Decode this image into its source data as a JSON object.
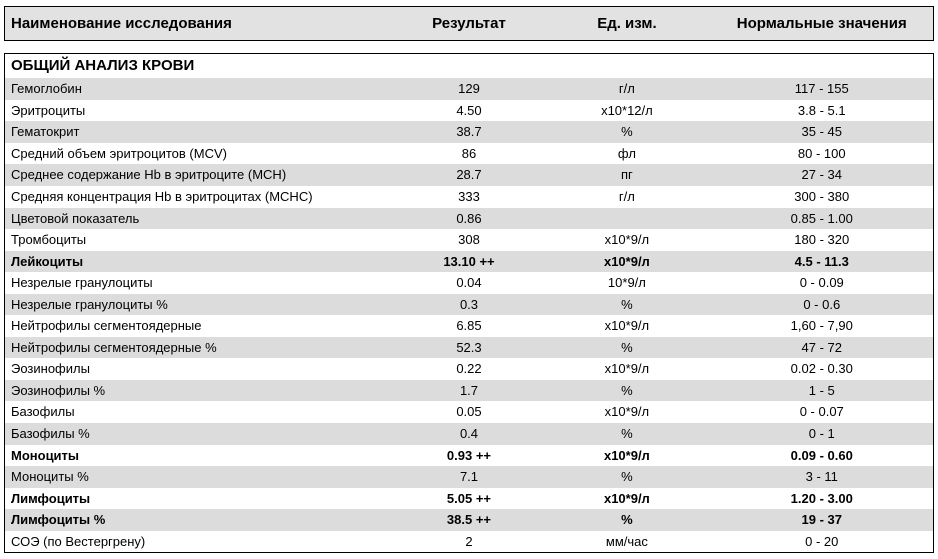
{
  "header": {
    "name": "Наименование исследования",
    "result": "Результат",
    "unit": "Ед. изм.",
    "norm": "Нормальные значения"
  },
  "section_title": "ОБЩИЙ АНАЛИЗ КРОВИ",
  "colors": {
    "stripe_light": "#ffffff",
    "stripe_dark": "#dcdcdc",
    "header_bg": "#e2e2e2",
    "border": "#000000",
    "text": "#000000"
  },
  "font": {
    "family": "Arial",
    "size_header_pt": 11,
    "size_body_pt": 10
  },
  "rows": [
    {
      "name": "Гемоглобин",
      "result": "129",
      "unit": "г/л",
      "norm": "117 - 155",
      "bold": false,
      "indent": false
    },
    {
      "name": "Эритроциты",
      "result": "4.50",
      "unit": "x10*12/л",
      "norm": "3.8 - 5.1",
      "bold": false,
      "indent": false
    },
    {
      "name": "Гематокрит",
      "result": "38.7",
      "unit": "%",
      "norm": "35 - 45",
      "bold": false,
      "indent": false
    },
    {
      "name": "Средний объем эритроцитов (MCV)",
      "result": "86",
      "unit": "фл",
      "norm": "80 - 100",
      "bold": false,
      "indent": false
    },
    {
      "name": "Среднее содержание Hb в эритроците (MCH)",
      "result": "28.7",
      "unit": "пг",
      "norm": "27 - 34",
      "bold": false,
      "indent": false
    },
    {
      "name": "Средняя концентрация Hb в эритроцитах (MCHC)",
      "result": "333",
      "unit": "г/л",
      "norm": "300 - 380",
      "bold": false,
      "indent": false
    },
    {
      "name": "Цветовой показатель",
      "result": "0.86",
      "unit": "",
      "norm": "0.85 - 1.00",
      "bold": false,
      "indent": false
    },
    {
      "name": "Тромбоциты",
      "result": "308",
      "unit": "x10*9/л",
      "norm": "180 - 320",
      "bold": false,
      "indent": false
    },
    {
      "name": "Лейкоциты",
      "result": "13.10 ++",
      "unit": "x10*9/л",
      "norm": "4.5 - 11.3",
      "bold": true,
      "indent": false
    },
    {
      "name": "Незрелые гранулоциты",
      "result": "0.04",
      "unit": "10*9/л",
      "norm": "0 - 0.09",
      "bold": false,
      "indent": true
    },
    {
      "name": "Незрелые гранулоциты %",
      "result": "0.3",
      "unit": "%",
      "norm": "0 - 0.6",
      "bold": false,
      "indent": true
    },
    {
      "name": "Нейтрофилы сегментоядерные",
      "result": "6.85",
      "unit": "x10*9/л",
      "norm": "1,60 - 7,90",
      "bold": false,
      "indent": false
    },
    {
      "name": "Нейтрофилы сегментоядерные %",
      "result": "52.3",
      "unit": "%",
      "norm": "47 - 72",
      "bold": false,
      "indent": false
    },
    {
      "name": "Эозинофилы",
      "result": "0.22",
      "unit": "x10*9/л",
      "norm": "0.02 - 0.30",
      "bold": false,
      "indent": false
    },
    {
      "name": "Эозинофилы %",
      "result": "1.7",
      "unit": "%",
      "norm": "1 - 5",
      "bold": false,
      "indent": false
    },
    {
      "name": "Базофилы",
      "result": "0.05",
      "unit": "x10*9/л",
      "norm": "0 - 0.07",
      "bold": false,
      "indent": false
    },
    {
      "name": "Базофилы %",
      "result": "0.4",
      "unit": "%",
      "norm": "0 - 1",
      "bold": false,
      "indent": false
    },
    {
      "name": "Моноциты",
      "result": "0.93 ++",
      "unit": "x10*9/л",
      "norm": "0.09 - 0.60",
      "bold": true,
      "indent": false
    },
    {
      "name": "Моноциты %",
      "result": "7.1",
      "unit": "%",
      "norm": "3 - 11",
      "bold": false,
      "indent": false
    },
    {
      "name": "Лимфоциты",
      "result": "5.05 ++",
      "unit": "x10*9/л",
      "norm": "1.20 - 3.00",
      "bold": true,
      "indent": false
    },
    {
      "name": "Лимфоциты %",
      "result": "38.5 ++",
      "unit": "%",
      "norm": "19 - 37",
      "bold": true,
      "indent": false
    },
    {
      "name": "СОЭ (по Вестергрену)",
      "result": "2",
      "unit": "мм/час",
      "norm": "0 - 20",
      "bold": false,
      "indent": false
    }
  ]
}
